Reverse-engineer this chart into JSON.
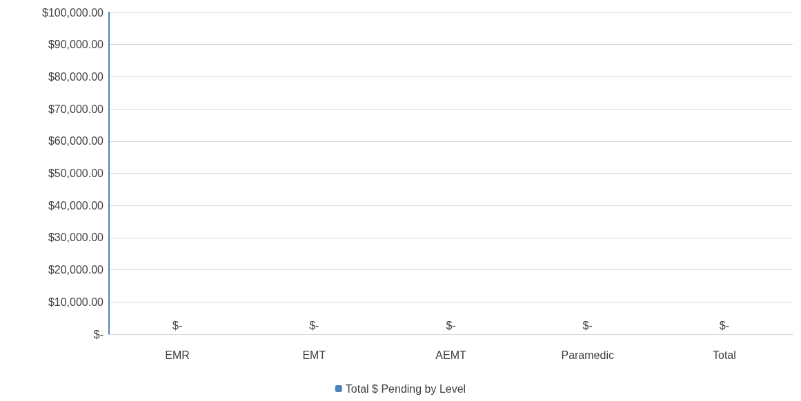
{
  "chart_data": {
    "type": "bar",
    "categories": [
      "EMR",
      "EMT",
      "AEMT",
      "Paramedic",
      "Total"
    ],
    "series": [
      {
        "name": "Total $ Pending by Level",
        "color": "#4f81bd",
        "values": [
          0,
          0,
          0,
          0,
          0
        ],
        "value_labels": [
          "$-",
          "$-",
          "$-",
          "$-",
          "$-"
        ]
      }
    ],
    "ylim": [
      0,
      100000
    ],
    "yticks": [
      {
        "value": 0,
        "label": "$-"
      },
      {
        "value": 10000,
        "label": "$10,000.00"
      },
      {
        "value": 20000,
        "label": "$20,000.00"
      },
      {
        "value": 30000,
        "label": "$30,000.00"
      },
      {
        "value": 40000,
        "label": "$40,000.00"
      },
      {
        "value": 50000,
        "label": "$50,000.00"
      },
      {
        "value": 60000,
        "label": "$60,000.00"
      },
      {
        "value": 70000,
        "label": "$70,000.00"
      },
      {
        "value": 80000,
        "label": "$80,000.00"
      },
      {
        "value": 90000,
        "label": "$90,000.00"
      },
      {
        "value": 100000,
        "label": "$100,000.00"
      }
    ],
    "grid": "y",
    "legend": "bottom"
  }
}
